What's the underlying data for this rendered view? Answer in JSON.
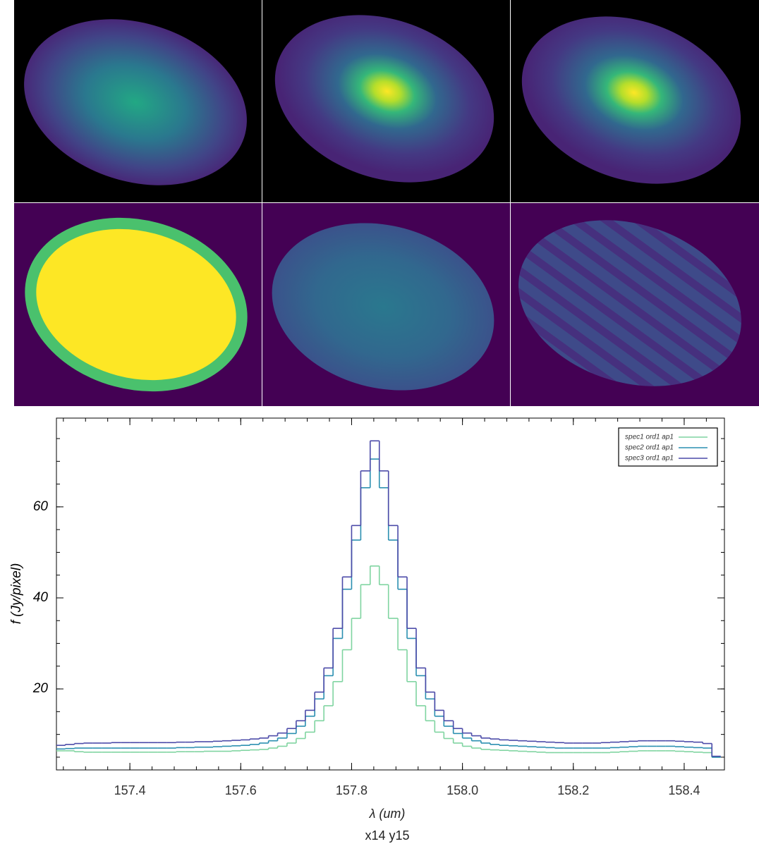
{
  "chart_data": {
    "type": "line",
    "drawstyle": "steps-mid",
    "x_label": "λ (um)",
    "y_label": "f (Jy/pixel)",
    "caption": "x14 y15",
    "x": [
      157.275,
      157.292,
      157.308,
      157.325,
      157.342,
      157.358,
      157.375,
      157.392,
      157.408,
      157.425,
      157.442,
      157.458,
      157.475,
      157.492,
      157.508,
      157.525,
      157.542,
      157.558,
      157.575,
      157.592,
      157.608,
      157.625,
      157.642,
      157.658,
      157.675,
      157.692,
      157.708,
      157.725,
      157.742,
      157.758,
      157.775,
      157.792,
      157.808,
      157.825,
      157.842,
      157.858,
      157.875,
      157.892,
      157.908,
      157.925,
      157.942,
      157.958,
      157.975,
      157.992,
      158.008,
      158.025,
      158.042,
      158.058,
      158.075,
      158.092,
      158.108,
      158.125,
      158.142,
      158.158,
      158.175,
      158.192,
      158.208,
      158.225,
      158.242,
      158.258,
      158.275,
      158.292,
      158.308,
      158.325,
      158.342,
      158.358,
      158.375,
      158.392,
      158.408,
      158.425,
      158.442,
      158.458
    ],
    "series": [
      {
        "name": "spec1 ord1 ap1",
        "color": "#7fd4a0",
        "values": [
          6.4,
          6.4,
          6.2,
          6.1,
          6.1,
          6.1,
          6.1,
          6.1,
          6.1,
          6.1,
          6.1,
          6.1,
          6.1,
          6.2,
          6.2,
          6.2,
          6.3,
          6.3,
          6.3,
          6.4,
          6.5,
          6.6,
          6.7,
          7.0,
          7.4,
          8.1,
          9.1,
          10.5,
          13.0,
          16.3,
          21.6,
          28.6,
          35.5,
          42.9,
          47.0,
          42.9,
          35.5,
          28.6,
          21.6,
          16.3,
          13.0,
          10.5,
          9.1,
          8.1,
          7.4,
          7.0,
          6.7,
          6.6,
          6.5,
          6.4,
          6.3,
          6.2,
          6.1,
          6.0,
          6.0,
          6.0,
          6.0,
          6.0,
          6.0,
          6.0,
          6.1,
          6.2,
          6.3,
          6.4,
          6.4,
          6.4,
          6.4,
          6.3,
          6.2,
          6.1,
          6.0,
          5.0
        ]
      },
      {
        "name": "spec2 ord1 ap1",
        "color": "#2a8fb0",
        "values": [
          6.8,
          6.9,
          7.0,
          7.0,
          7.0,
          7.0,
          7.0,
          7.0,
          7.0,
          7.0,
          7.0,
          7.0,
          7.0,
          7.1,
          7.1,
          7.2,
          7.2,
          7.3,
          7.4,
          7.5,
          7.6,
          7.8,
          8.1,
          8.6,
          9.2,
          10.2,
          11.8,
          14.0,
          17.8,
          22.9,
          31.1,
          41.9,
          52.7,
          64.2,
          70.5,
          64.2,
          52.7,
          41.9,
          31.1,
          22.9,
          17.8,
          14.0,
          11.8,
          10.2,
          9.2,
          8.6,
          8.1,
          7.8,
          7.6,
          7.5,
          7.4,
          7.3,
          7.2,
          7.1,
          7.0,
          7.0,
          7.0,
          7.0,
          7.0,
          7.0,
          7.1,
          7.2,
          7.3,
          7.4,
          7.4,
          7.4,
          7.4,
          7.3,
          7.2,
          7.1,
          7.0,
          5.0
        ]
      },
      {
        "name": "spec3 ord1 ap1",
        "color": "#4b4aa8",
        "values": [
          7.6,
          7.8,
          8.0,
          8.1,
          8.1,
          8.1,
          8.2,
          8.2,
          8.2,
          8.2,
          8.2,
          8.2,
          8.2,
          8.3,
          8.3,
          8.4,
          8.4,
          8.5,
          8.6,
          8.7,
          8.8,
          9.0,
          9.2,
          9.7,
          10.3,
          11.3,
          13.0,
          15.3,
          19.3,
          24.6,
          33.3,
          44.6,
          55.9,
          67.9,
          74.5,
          67.9,
          55.9,
          44.6,
          33.3,
          24.6,
          19.3,
          15.3,
          13.0,
          11.3,
          10.3,
          9.7,
          9.2,
          9.0,
          8.8,
          8.7,
          8.6,
          8.5,
          8.4,
          8.3,
          8.2,
          8.1,
          8.1,
          8.1,
          8.1,
          8.2,
          8.3,
          8.4,
          8.5,
          8.6,
          8.6,
          8.6,
          8.6,
          8.5,
          8.4,
          8.3,
          8.0,
          5.2
        ]
      }
    ],
    "xlim": [
      157.2675,
      158.4726
    ],
    "ylim": [
      2.2,
      79.5
    ],
    "xticks": [
      157.4,
      157.6,
      157.8,
      {
        "value": 158,
        "label": "158.0"
      },
      158.2,
      158.4
    ],
    "yticks": [
      20,
      40,
      60
    ],
    "legend": "upper right"
  }
}
